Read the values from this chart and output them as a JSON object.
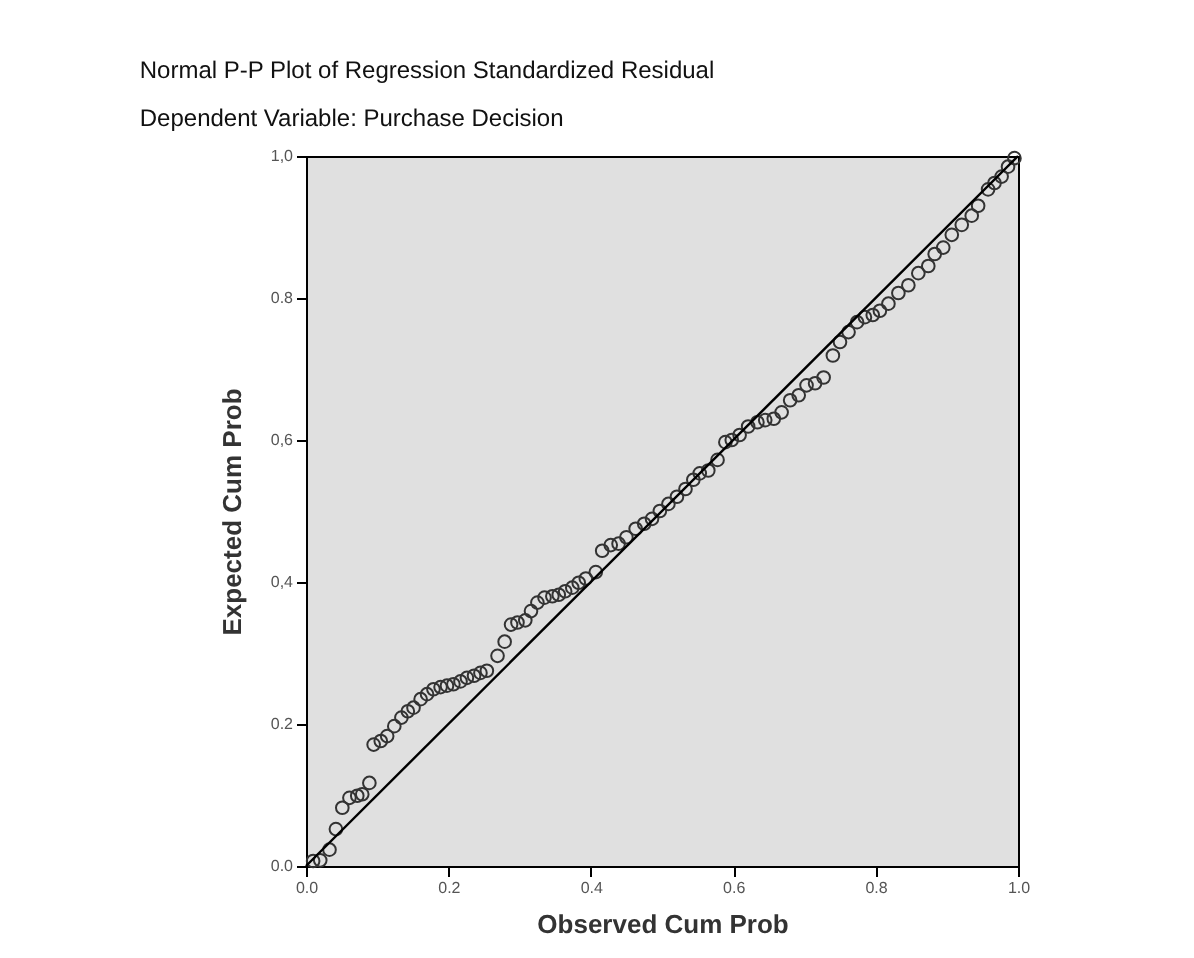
{
  "chart_data": {
    "type": "scatter",
    "title": "Normal P-P Plot of Regression Standardized Residual",
    "subtitle": "Dependent Variable: Purchase Decision",
    "xlabel": "Observed Cum Prob",
    "ylabel": "Expected Cum Prob",
    "xlim": [
      0,
      1
    ],
    "ylim": [
      0,
      1
    ],
    "xticks": [
      {
        "value": 0,
        "label": "0.0"
      },
      0.2,
      0.4,
      0.6,
      0.8,
      {
        "value": 1,
        "label": "1.0"
      }
    ],
    "yticks": [
      {
        "value": 0,
        "label": "0.0"
      },
      0.2,
      {
        "value": 0.4,
        "label": "0,4"
      },
      {
        "value": 0.6,
        "label": "0,6"
      },
      0.8,
      {
        "value": 1,
        "label": "1,0"
      }
    ],
    "grid": false,
    "series": [
      {
        "marker": "circle",
        "color": "#333333",
        "x": [
          0.01,
          0.02,
          0.033,
          0.042,
          0.051,
          0.061,
          0.072,
          0.079,
          0.089,
          0.095,
          0.105,
          0.114,
          0.124,
          0.134,
          0.143,
          0.151,
          0.161,
          0.17,
          0.179,
          0.189,
          0.198,
          0.207,
          0.217,
          0.226,
          0.236,
          0.245,
          0.254,
          0.269,
          0.279,
          0.288,
          0.297,
          0.308,
          0.316,
          0.325,
          0.335,
          0.346,
          0.355,
          0.364,
          0.374,
          0.383,
          0.393,
          0.407,
          0.416,
          0.428,
          0.439,
          0.45,
          0.463,
          0.475,
          0.486,
          0.497,
          0.509,
          0.521,
          0.533,
          0.544,
          0.553,
          0.565,
          0.578,
          0.589,
          0.598,
          0.609,
          0.621,
          0.634,
          0.645,
          0.657,
          0.668,
          0.68,
          0.692,
          0.703,
          0.715,
          0.727,
          0.74,
          0.75,
          0.762,
          0.774,
          0.785,
          0.796,
          0.806,
          0.818,
          0.832,
          0.846,
          0.86,
          0.874,
          0.883,
          0.895,
          0.907,
          0.921,
          0.935,
          0.944,
          0.958,
          0.967,
          0.977,
          0.986,
          0.995
        ],
        "values": [
          0.007,
          0.008,
          0.023,
          0.052,
          0.082,
          0.096,
          0.099,
          0.101,
          0.117,
          0.171,
          0.176,
          0.183,
          0.197,
          0.209,
          0.218,
          0.223,
          0.235,
          0.242,
          0.249,
          0.252,
          0.254,
          0.256,
          0.26,
          0.265,
          0.268,
          0.272,
          0.275,
          0.296,
          0.316,
          0.34,
          0.343,
          0.346,
          0.359,
          0.371,
          0.378,
          0.38,
          0.382,
          0.387,
          0.392,
          0.399,
          0.405,
          0.414,
          0.444,
          0.452,
          0.454,
          0.463,
          0.475,
          0.482,
          0.489,
          0.5,
          0.51,
          0.52,
          0.531,
          0.544,
          0.553,
          0.557,
          0.572,
          0.597,
          0.6,
          0.607,
          0.619,
          0.625,
          0.628,
          0.63,
          0.639,
          0.656,
          0.663,
          0.677,
          0.68,
          0.688,
          0.719,
          0.738,
          0.752,
          0.766,
          0.773,
          0.776,
          0.782,
          0.792,
          0.807,
          0.818,
          0.835,
          0.845,
          0.862,
          0.871,
          0.889,
          0.903,
          0.916,
          0.93,
          0.953,
          0.962,
          0.971,
          0.985,
          0.997
        ]
      },
      {
        "type": "line",
        "marker": "none",
        "color": "#000000",
        "x": [
          0,
          1
        ],
        "values": [
          0,
          1
        ]
      }
    ]
  }
}
